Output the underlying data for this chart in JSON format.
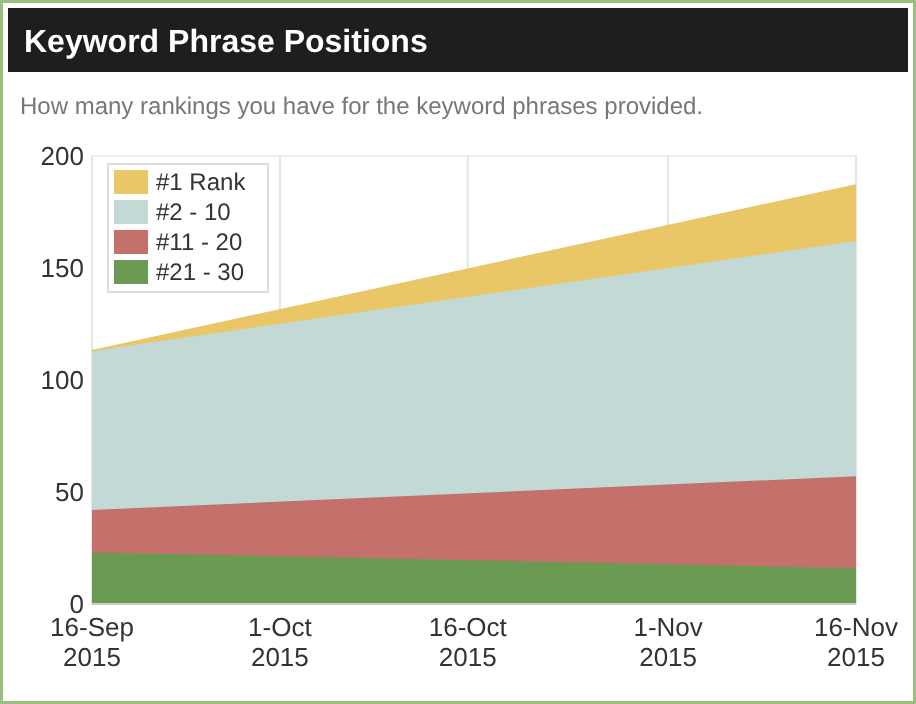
{
  "chart_data": {
    "type": "area",
    "title": "Keyword Phrase Positions",
    "subtitle": "How many rankings you have for the keyword phrases provided.",
    "x": [
      "2015-09-16",
      "2015-11-16"
    ],
    "stacked": true,
    "series": [
      {
        "name": "#21 - 30",
        "color": "#6b9a52",
        "values": [
          23,
          16
        ]
      },
      {
        "name": "#11 - 20",
        "color": "#c4706b",
        "values": [
          19,
          41
        ]
      },
      {
        "name": "#2 - 10",
        "color": "#c2d9d6",
        "values": [
          71,
          105
        ]
      },
      {
        "name": "#1 Rank",
        "color": "#e9c766",
        "values": [
          0,
          25
        ]
      }
    ],
    "xlim": [
      "2015-09-16",
      "2015-11-16"
    ],
    "xticks": [
      {
        "value": "2015-09-16",
        "label": "16-Sep 2015"
      },
      {
        "value": "2015-10-01",
        "label": "1-Oct 2015"
      },
      {
        "value": "2015-10-16",
        "label": "16-Oct 2015"
      },
      {
        "value": "2015-11-01",
        "label": "1-Nov 2015"
      },
      {
        "value": "2015-11-16",
        "label": "16-Nov 2015"
      }
    ],
    "ylim": [
      0,
      200
    ],
    "yticks": [
      0,
      50,
      100,
      150,
      200
    ],
    "grid": "x",
    "legend": "top left"
  }
}
